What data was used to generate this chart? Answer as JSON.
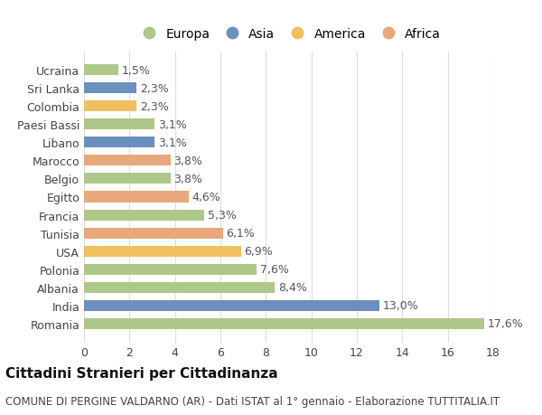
{
  "countries": [
    "Ucraina",
    "Sri Lanka",
    "Colombia",
    "Paesi Bassi",
    "Libano",
    "Marocco",
    "Belgio",
    "Egitto",
    "Francia",
    "Tunisia",
    "USA",
    "Polonia",
    "Albania",
    "India",
    "Romania"
  ],
  "values": [
    1.5,
    2.3,
    2.3,
    3.1,
    3.1,
    3.8,
    3.8,
    4.6,
    5.3,
    6.1,
    6.9,
    7.6,
    8.4,
    13.0,
    17.6
  ],
  "labels": [
    "1,5%",
    "2,3%",
    "2,3%",
    "3,1%",
    "3,1%",
    "3,8%",
    "3,8%",
    "4,6%",
    "5,3%",
    "6,1%",
    "6,9%",
    "7,6%",
    "8,4%",
    "13,0%",
    "17,6%"
  ],
  "continents": [
    "Europa",
    "Asia",
    "America",
    "Europa",
    "Asia",
    "Africa",
    "Europa",
    "Africa",
    "Europa",
    "Africa",
    "America",
    "Europa",
    "Europa",
    "Asia",
    "Europa"
  ],
  "continent_colors": {
    "Asia": "#6b90bf",
    "America": "#f0c060",
    "Africa": "#e8a87c"
  },
  "legend_order": [
    "Europa",
    "Asia",
    "America",
    "Africa"
  ],
  "title": "Cittadini Stranieri per Cittadinanza",
  "subtitle": "COMUNE DI PERGINE VALDARNO (AR) - Dati ISTAT al 1° gennaio - Elaborazione TUTTITALIA.IT",
  "xlim": [
    0,
    18
  ],
  "xticks": [
    0,
    2,
    4,
    6,
    8,
    10,
    12,
    14,
    16,
    18
  ],
  "bg_color": "#ffffff",
  "grid_color": "#dddddd",
  "bar_height": 0.6,
  "title_fontsize": 11,
  "subtitle_fontsize": 8.5,
  "tick_fontsize": 9,
  "label_fontsize": 9,
  "legend_fontsize": 10
}
